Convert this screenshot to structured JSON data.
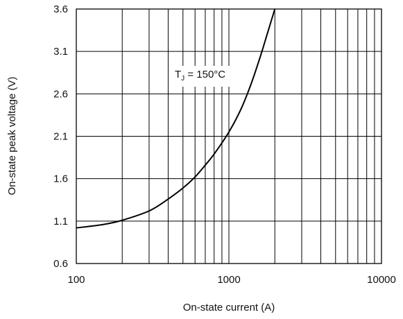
{
  "chart_data": {
    "type": "line",
    "xlabel": "On-state current (A)",
    "ylabel": "On-state peak voltage (V)",
    "x_scale": "log",
    "xlim": [
      100,
      10000
    ],
    "ylim": [
      0.6,
      3.6
    ],
    "x_ticks": [
      "100",
      "1000",
      "10000"
    ],
    "y_ticks": [
      "0.6",
      "1.1",
      "1.6",
      "2.1",
      "2.6",
      "3.1",
      "3.6"
    ],
    "grid": true,
    "annotation": {
      "main": "T",
      "sub": "J",
      "rest": " = 150°C"
    },
    "series": [
      {
        "x": [
          100,
          150,
          200,
          300,
          400,
          500,
          600,
          700,
          800,
          1000,
          1200,
          1400,
          1600,
          1800,
          2000
        ],
        "y": [
          1.02,
          1.06,
          1.11,
          1.22,
          1.36,
          1.49,
          1.62,
          1.76,
          1.89,
          2.15,
          2.42,
          2.72,
          3.03,
          3.33,
          3.6
        ]
      }
    ]
  }
}
